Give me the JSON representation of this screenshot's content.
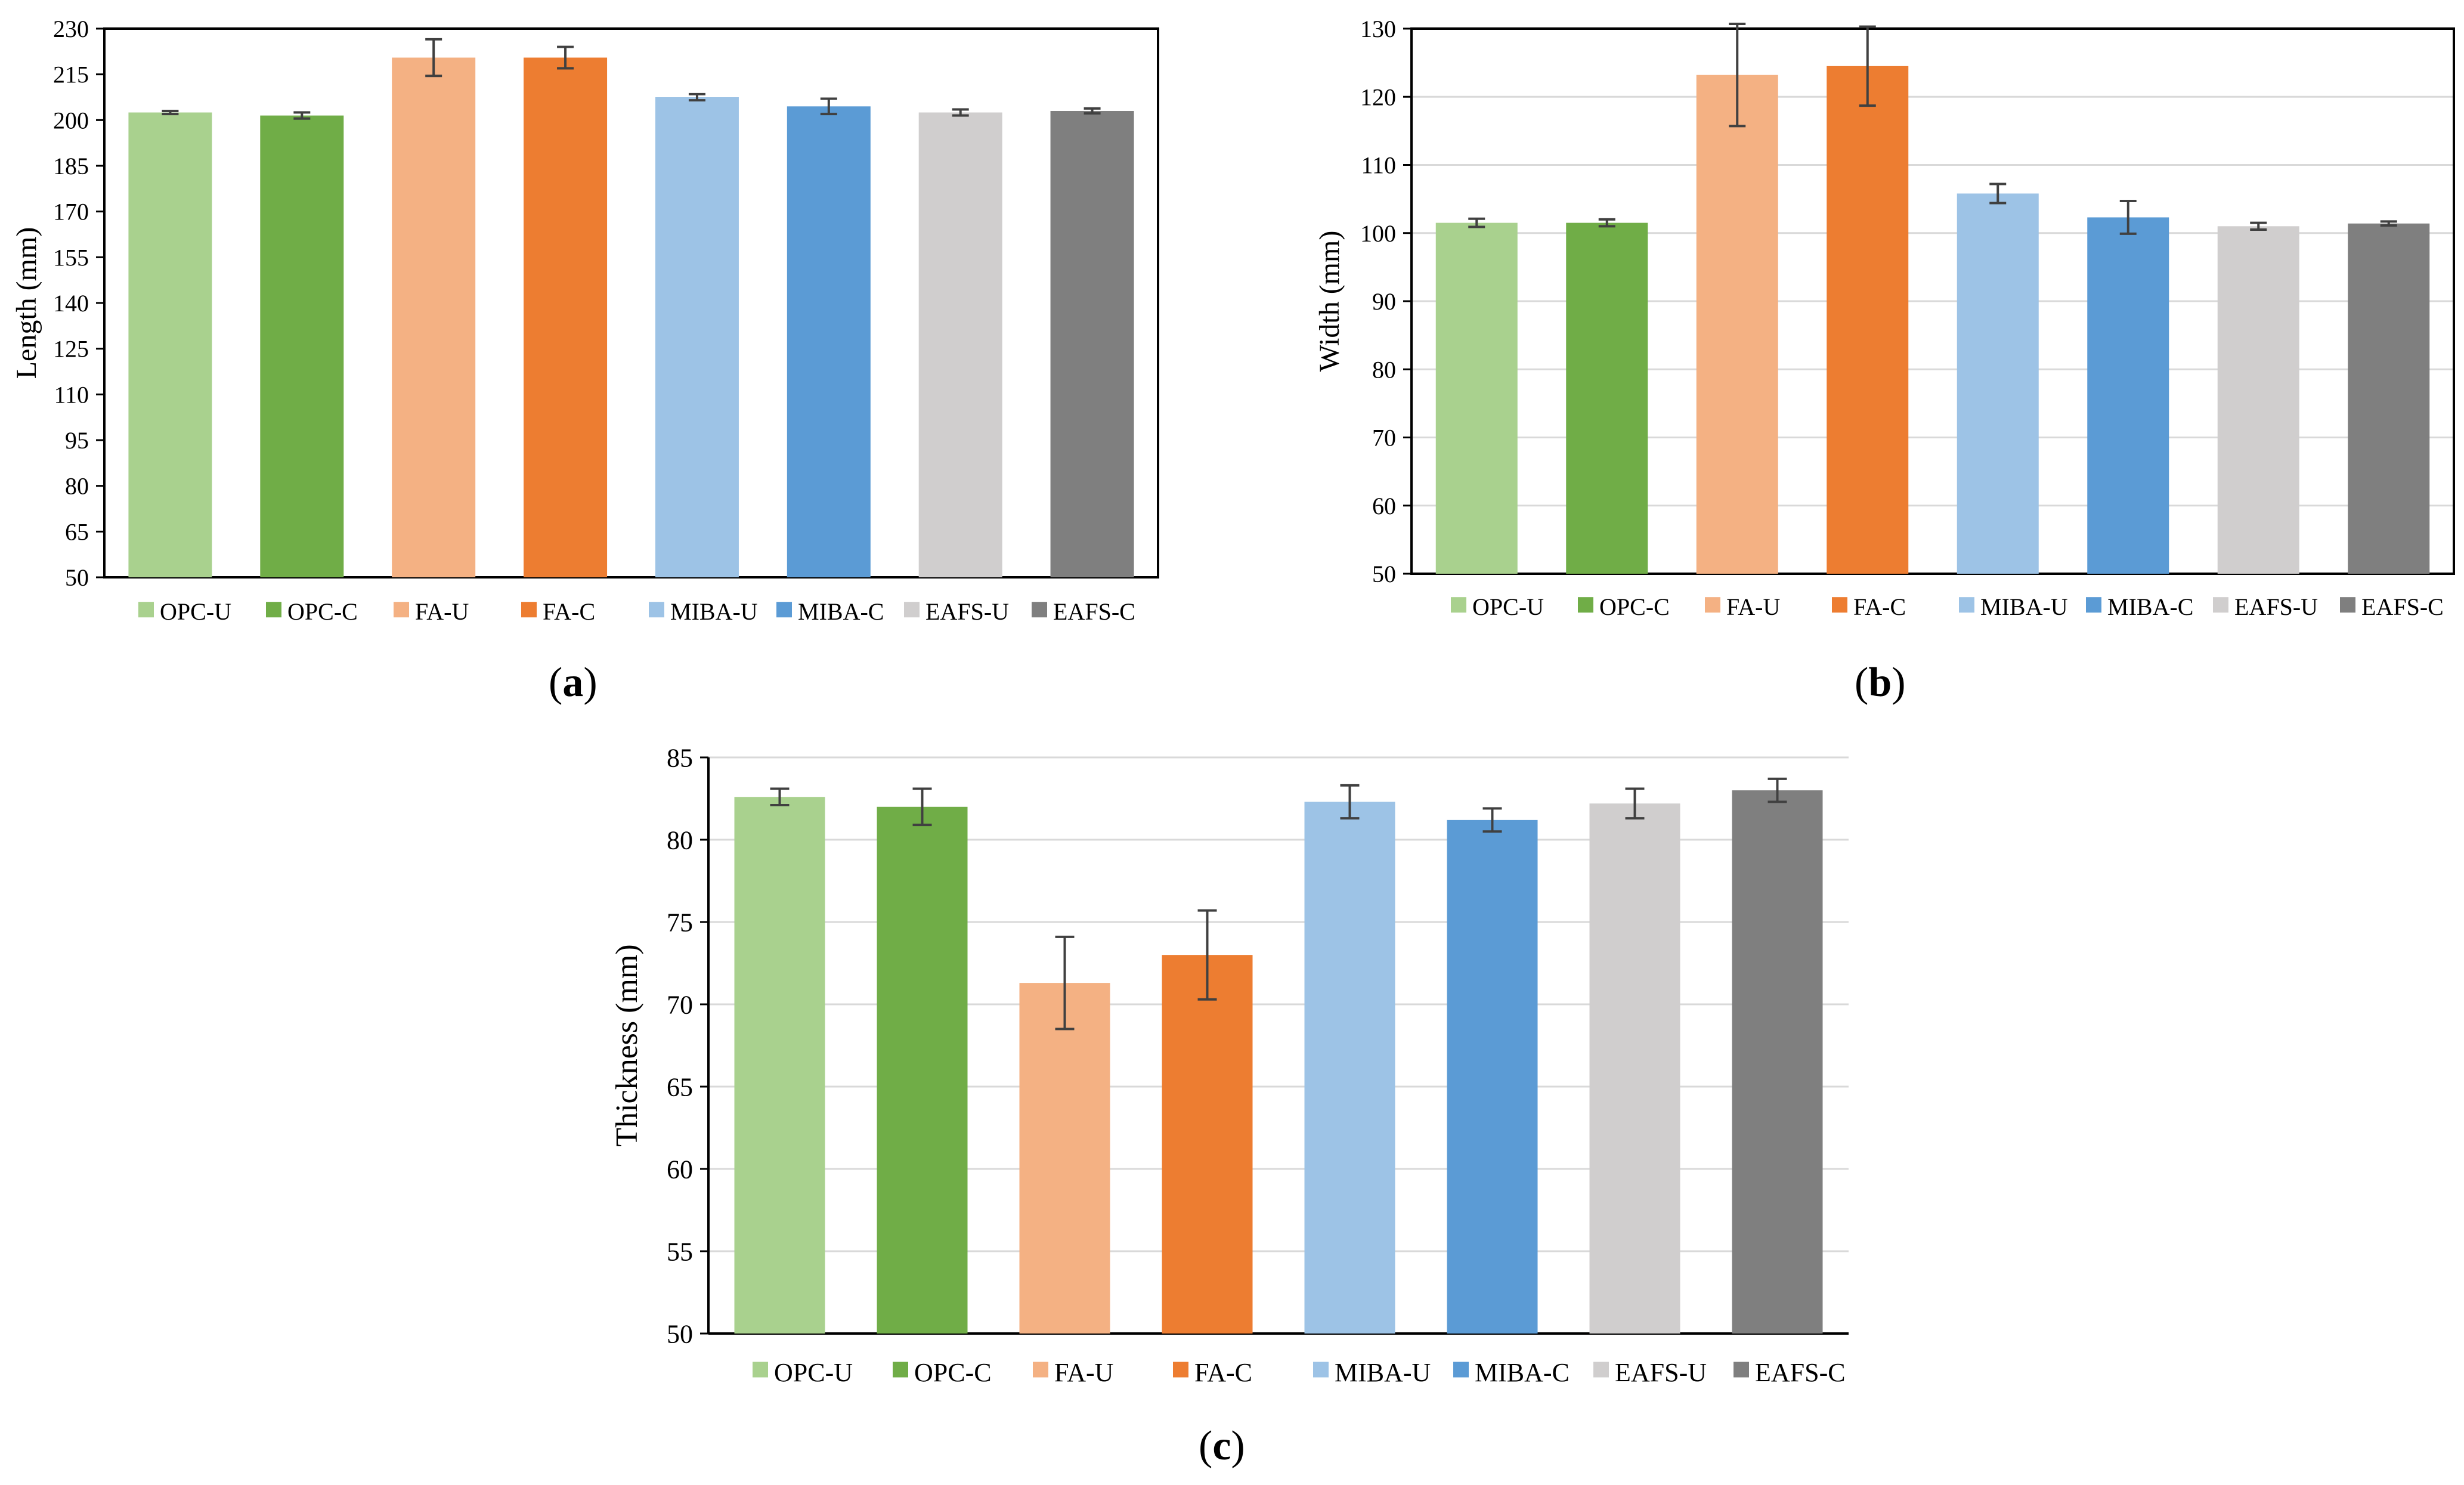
{
  "legend_labels": [
    "OPC-U",
    "OPC-C",
    "FA-U",
    "FA-C",
    "MIBA-U",
    "MIBA-C",
    "EAFS-U",
    "EAFS-C"
  ],
  "colors": [
    "#a9d18e",
    "#70ad47",
    "#f4b183",
    "#ed7d31",
    "#9dc3e6",
    "#5b9bd5",
    "#d0cece",
    "#7f7f7f"
  ],
  "captions": {
    "a": {
      "open": "(",
      "letter": "a",
      "close": ")"
    },
    "b": {
      "open": "(",
      "letter": "b",
      "close": ")"
    },
    "c": {
      "open": "(",
      "letter": "c",
      "close": ")"
    }
  },
  "chart_data": [
    {
      "id": "a",
      "type": "bar",
      "categories": [
        "OPC-U",
        "OPC-C",
        "FA-U",
        "FA-C",
        "MIBA-U",
        "MIBA-C",
        "EAFS-U",
        "EAFS-C"
      ],
      "values": [
        202.5,
        201.5,
        220.5,
        220.5,
        207.5,
        204.5,
        202.5,
        203.0
      ],
      "errors": [
        0.5,
        1.0,
        6.0,
        3.5,
        1.0,
        2.5,
        1.0,
        0.8
      ],
      "ylabel": "Length (mm)",
      "ylim": [
        50,
        230
      ],
      "yticks": [
        50,
        65,
        80,
        95,
        110,
        125,
        140,
        155,
        170,
        185,
        200,
        215,
        230
      ],
      "grid": false,
      "frame": true,
      "legend": "bottom"
    },
    {
      "id": "b",
      "type": "bar",
      "categories": [
        "OPC-U",
        "OPC-C",
        "FA-U",
        "FA-C",
        "MIBA-U",
        "MIBA-C",
        "EAFS-U",
        "EAFS-C"
      ],
      "values": [
        101.5,
        101.5,
        123.2,
        124.5,
        105.8,
        102.3,
        101.0,
        101.4
      ],
      "errors": [
        0.6,
        0.5,
        7.5,
        5.8,
        1.4,
        2.4,
        0.5,
        0.3
      ],
      "ylabel": "Width (mm)",
      "ylim": [
        50,
        130
      ],
      "yticks": [
        50,
        60,
        70,
        80,
        90,
        100,
        110,
        120,
        130
      ],
      "grid": true,
      "frame": true,
      "legend": "bottom"
    },
    {
      "id": "c",
      "type": "bar",
      "categories": [
        "OPC-U",
        "OPC-C",
        "FA-U",
        "FA-C",
        "MIBA-U",
        "MIBA-C",
        "EAFS-U",
        "EAFS-C"
      ],
      "values": [
        82.6,
        82.0,
        71.3,
        73.0,
        82.3,
        81.2,
        82.2,
        83.0
      ],
      "errors": [
        0.5,
        1.1,
        2.8,
        2.7,
        1.0,
        0.7,
        0.9,
        0.7
      ],
      "ylabel": "Thickness (mm)",
      "ylim": [
        50,
        85
      ],
      "yticks": [
        50,
        55,
        60,
        65,
        70,
        75,
        80,
        85
      ],
      "grid": true,
      "frame": false,
      "legend": "bottom"
    }
  ]
}
